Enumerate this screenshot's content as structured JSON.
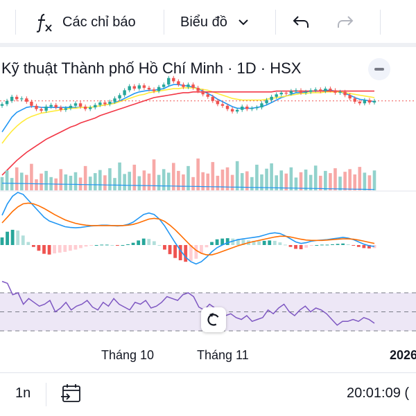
{
  "toolbar": {
    "indicators_label": "Các chỉ báo",
    "chart_type_label": "Biểu đồ",
    "icons": [
      "function-icon",
      "chevron-down-icon",
      "undo-icon",
      "redo-icon"
    ]
  },
  "legend": {
    "title": "Kỹ thuật Thành phố Hồ Chí Minh · 1D · HSX"
  },
  "x_axis": {
    "labels": [
      "Tháng 10",
      "Tháng 11",
      "2026"
    ]
  },
  "bottom_bar": {
    "interval": "1n",
    "time": "20:01:09 (",
    "icons": [
      "calendar-range-icon"
    ]
  },
  "colors": {
    "up": "#26a69a",
    "down": "#ef5350",
    "ma_blue": "#2196f3",
    "ma_yellow": "#ffeb3b",
    "ma_red": "#f23645",
    "macd_orange": "#ff6d00",
    "rsi_line": "#7e57c2",
    "rsi_band": "#ede7f6"
  },
  "chart_data": [
    {
      "type": "candlestick",
      "pane": "price",
      "title": "Kỹ thuật Thành phố Hồ Chí Minh · 1D · HSX",
      "close": [
        21.2,
        21.6,
        22.1,
        21.8,
        21.9,
        21.5,
        21.0,
        20.6,
        20.4,
        20.9,
        21.1,
        20.8,
        20.5,
        20.7,
        21.0,
        21.3,
        20.9,
        20.6,
        20.8,
        21.1,
        21.4,
        21.2,
        21.5,
        21.9,
        22.3,
        22.9,
        23.4,
        23.1,
        23.5,
        23.2,
        23.0,
        22.8,
        23.3,
        23.6,
        24.4,
        24.0,
        23.6,
        23.3,
        23.6,
        23.2,
        22.8,
        22.4,
        22.1,
        21.6,
        21.2,
        21.0,
        20.6,
        20.3,
        20.5,
        20.9,
        20.6,
        20.7,
        20.8,
        21.3,
        21.7,
        22.1,
        22.4,
        22.6,
        22.5,
        22.8,
        22.9,
        22.6,
        22.7,
        22.9,
        23.0,
        22.8,
        23.1,
        22.9,
        22.6,
        22.7,
        22.3,
        21.9,
        21.5,
        21.3,
        21.7,
        21.4,
        21.6
      ],
      "series": [
        {
          "name": "",
          "type": "line",
          "color": "#2196f3",
          "values": [
            17.8,
            18.7,
            19.6,
            20.2,
            20.5,
            20.8,
            20.9,
            20.9,
            20.8,
            20.8,
            20.8,
            20.8,
            20.8,
            20.8,
            20.8,
            20.8,
            20.8,
            20.8,
            20.8,
            20.9,
            21.0,
            21.1,
            21.2,
            21.4,
            21.6,
            21.9,
            22.2,
            22.5,
            22.7,
            22.8,
            22.9,
            22.9,
            23.0,
            23.1,
            23.4,
            23.6,
            23.6,
            23.5,
            23.4,
            23.3,
            23.1,
            22.8,
            22.5,
            22.2,
            21.8,
            21.5,
            21.2,
            20.9,
            20.7,
            20.7,
            20.7,
            20.7,
            20.8,
            20.9,
            21.1,
            21.4,
            21.7,
            22.0,
            22.2,
            22.4,
            22.6,
            22.6,
            22.7,
            22.8,
            22.8,
            22.8,
            22.9,
            22.9,
            22.8,
            22.7,
            22.5,
            22.3,
            22.0,
            21.8,
            21.7,
            21.6,
            21.5
          ]
        },
        {
          "name": "",
          "type": "line",
          "color": "#ffeb3b",
          "values": [
            16.4,
            17.2,
            17.9,
            18.5,
            19.0,
            19.4,
            19.7,
            19.9,
            20.1,
            20.2,
            20.3,
            20.4,
            20.5,
            20.6,
            20.7,
            20.7,
            20.8,
            20.8,
            20.8,
            20.9,
            21.0,
            21.1,
            21.2,
            21.3,
            21.5,
            21.7,
            21.9,
            22.1,
            22.3,
            22.4,
            22.6,
            22.7,
            22.8,
            22.9,
            23.0,
            23.1,
            23.1,
            23.2,
            23.2,
            23.2,
            23.1,
            23.0,
            22.9,
            22.7,
            22.5,
            22.3,
            22.1,
            21.9,
            21.8,
            21.7,
            21.7,
            21.7,
            21.7,
            21.7,
            21.8,
            21.9,
            22.0,
            22.1,
            22.2,
            22.3,
            22.4,
            22.5,
            22.5,
            22.6,
            22.6,
            22.6,
            22.7,
            22.7,
            22.7,
            22.7,
            22.6,
            22.5,
            22.4,
            22.3,
            22.2,
            22.1,
            22.0
          ]
        },
        {
          "name": "",
          "type": "line",
          "color": "#f23645",
          "values": [
            12.5,
            13.1,
            13.7,
            14.3,
            14.8,
            15.3,
            15.7,
            16.1,
            16.5,
            16.9,
            17.2,
            17.5,
            17.8,
            18.1,
            18.4,
            18.6,
            18.9,
            19.1,
            19.3,
            19.5,
            19.8,
            20.0,
            20.2,
            20.4,
            20.6,
            20.8,
            21.0,
            21.2,
            21.4,
            21.6,
            21.8,
            22.0,
            22.1,
            22.2,
            22.3,
            22.4,
            22.5,
            22.6,
            22.6,
            22.7,
            22.7,
            22.7,
            22.7,
            22.7,
            22.7,
            22.7,
            22.7,
            22.7,
            22.7,
            22.7,
            22.7,
            22.7,
            22.7,
            22.7,
            22.7,
            22.7,
            22.8,
            22.8,
            22.8,
            22.8,
            22.8,
            22.8,
            22.8,
            22.8,
            22.8,
            22.8,
            22.8,
            22.8,
            22.8,
            22.8,
            22.8,
            22.8,
            22.8,
            22.8,
            22.8,
            22.8,
            22.8
          ]
        }
      ],
      "price_line": 21.6
    },
    {
      "type": "bar",
      "pane": "volume",
      "values": [
        30,
        45,
        28,
        52,
        40,
        35,
        60,
        25,
        38,
        44,
        30,
        27,
        48,
        36,
        33,
        41,
        29,
        55,
        31,
        39,
        46,
        34,
        50,
        28,
        63,
        37,
        42,
        58,
        32,
        45,
        38,
        70,
        35,
        48,
        40,
        62,
        44,
        36,
        55,
        30,
        72,
        41,
        38,
        64,
        33,
        47,
        52,
        35,
        66,
        39,
        43,
        30,
        58,
        36,
        49,
        61,
        34,
        45,
        38,
        52,
        29,
        41,
        47,
        35,
        56,
        33,
        44,
        39,
        50,
        31,
        42,
        48,
        36,
        53,
        40,
        34,
        45
      ],
      "avg_line": 35
    },
    {
      "type": "line",
      "pane": "macd",
      "series": [
        {
          "name": "",
          "color": "#2196f3",
          "values": [
            0.6,
            0.9,
            1.1,
            1.2,
            1.15,
            1.0,
            0.85,
            0.7,
            0.55,
            0.45,
            0.4,
            0.35,
            0.3,
            0.28,
            0.27,
            0.28,
            0.3,
            0.32,
            0.33,
            0.34,
            0.34,
            0.33,
            0.32,
            0.33,
            0.36,
            0.42,
            0.52,
            0.62,
            0.66,
            0.62,
            0.5,
            0.32,
            0.1,
            -0.12,
            -0.32,
            -0.5,
            -0.62,
            -0.68,
            -0.62,
            -0.5,
            -0.36,
            -0.25,
            -0.18,
            -0.12,
            -0.08,
            -0.04,
            -0.02,
            0.0,
            0.02,
            0.04,
            0.08,
            0.12,
            0.14,
            0.12,
            0.06,
            -0.02,
            -0.1,
            -0.14,
            -0.12,
            -0.08,
            -0.06,
            -0.05,
            -0.04,
            -0.02,
            0.0,
            0.02,
            0.0,
            -0.04,
            -0.1,
            -0.16,
            -0.2,
            -0.22
          ]
        },
        {
          "name": "",
          "color": "#ff6d00",
          "values": [
            0.4,
            0.55,
            0.7,
            0.82,
            0.9,
            0.92,
            0.9,
            0.85,
            0.78,
            0.7,
            0.62,
            0.55,
            0.48,
            0.43,
            0.39,
            0.36,
            0.34,
            0.33,
            0.33,
            0.33,
            0.33,
            0.33,
            0.33,
            0.33,
            0.34,
            0.36,
            0.4,
            0.45,
            0.5,
            0.52,
            0.5,
            0.44,
            0.34,
            0.22,
            0.08,
            -0.06,
            -0.2,
            -0.32,
            -0.4,
            -0.44,
            -0.44,
            -0.4,
            -0.35,
            -0.3,
            -0.25,
            -0.2,
            -0.16,
            -0.12,
            -0.09,
            -0.06,
            -0.03,
            0.0,
            0.03,
            0.05,
            0.05,
            0.03,
            0.0,
            -0.03,
            -0.05,
            -0.06,
            -0.06,
            -0.06,
            -0.05,
            -0.04,
            -0.03,
            -0.02,
            -0.02,
            -0.03,
            -0.05,
            -0.08,
            -0.11,
            -0.14
          ]
        }
      ],
      "histogram": [
        0.2,
        0.35,
        0.4,
        0.38,
        0.25,
        0.08,
        -0.05,
        -0.15,
        -0.23,
        -0.25,
        -0.22,
        -0.2,
        -0.18,
        -0.15,
        -0.12,
        -0.08,
        -0.04,
        -0.01,
        0.0,
        0.01,
        0.01,
        0.0,
        -0.01,
        0.0,
        0.02,
        0.06,
        0.12,
        0.17,
        0.16,
        0.1,
        0.0,
        -0.12,
        -0.24,
        -0.34,
        -0.4,
        -0.44,
        -0.42,
        -0.36,
        -0.22,
        -0.06,
        0.08,
        0.15,
        0.17,
        0.18,
        0.17,
        0.16,
        0.14,
        0.12,
        0.11,
        0.1,
        0.11,
        0.12,
        0.11,
        0.07,
        0.01,
        -0.05,
        -0.1,
        -0.11,
        -0.07,
        -0.02,
        0.0,
        0.01,
        0.01,
        0.02,
        0.03,
        0.04,
        0.02,
        -0.01,
        -0.05,
        -0.08,
        -0.09,
        -0.08
      ]
    },
    {
      "type": "line",
      "pane": "rsi",
      "levels": [
        70,
        50,
        30
      ],
      "ylim": [
        20,
        90
      ],
      "values": [
        82,
        80,
        68,
        70,
        58,
        64,
        60,
        56,
        58,
        62,
        50,
        54,
        60,
        52,
        56,
        58,
        62,
        55,
        52,
        60,
        56,
        64,
        58,
        55,
        52,
        60,
        58,
        62,
        54,
        56,
        60,
        66,
        64,
        62,
        68,
        70,
        66,
        55,
        52,
        58,
        54,
        50,
        46,
        48,
        44,
        42,
        46,
        40,
        42,
        44,
        52,
        48,
        54,
        58,
        50,
        46,
        52,
        56,
        50,
        54,
        52,
        48,
        42,
        36,
        40,
        40,
        42,
        40,
        44,
        42,
        38
      ]
    }
  ]
}
